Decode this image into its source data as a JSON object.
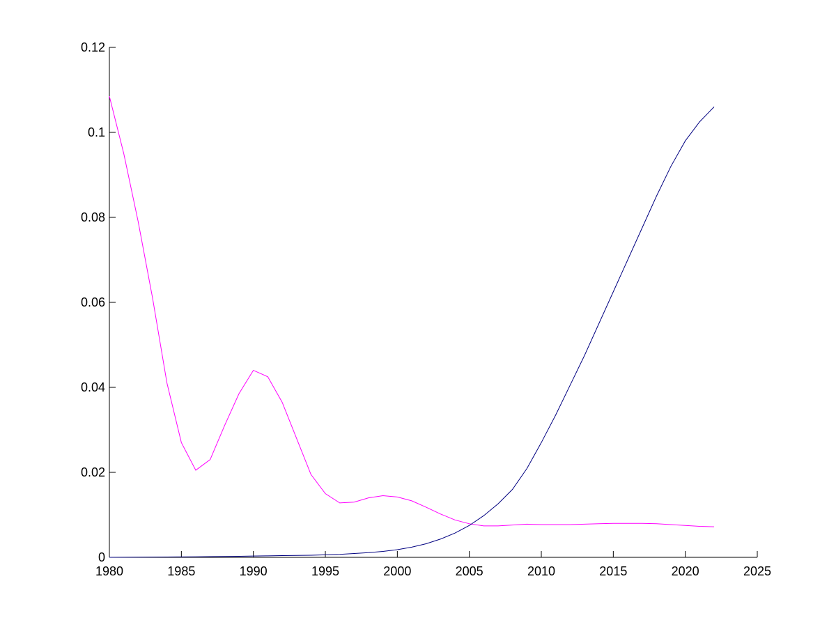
{
  "chart_data": {
    "type": "line",
    "x": [
      1980,
      1981,
      1982,
      1983,
      1984,
      1985,
      1986,
      1987,
      1988,
      1989,
      1990,
      1991,
      1992,
      1993,
      1994,
      1995,
      1996,
      1997,
      1998,
      1999,
      2000,
      2001,
      2002,
      2003,
      2004,
      2005,
      2006,
      2007,
      2008,
      2009,
      2010,
      2011,
      2012,
      2013,
      2014,
      2015,
      2016,
      2017,
      2018,
      2019,
      2020,
      2021,
      2022
    ],
    "series": [
      {
        "color": "#ff00ff",
        "values": [
          0.1085,
          0.095,
          0.079,
          0.061,
          0.041,
          0.027,
          0.0205,
          0.023,
          0.031,
          0.0385,
          0.044,
          0.0425,
          0.0365,
          0.028,
          0.0195,
          0.015,
          0.0128,
          0.013,
          0.014,
          0.0145,
          0.0142,
          0.0133,
          0.0118,
          0.0102,
          0.0088,
          0.0079,
          0.0074,
          0.0074,
          0.0076,
          0.0078,
          0.0077,
          0.0077,
          0.0077,
          0.0078,
          0.0079,
          0.008,
          0.008,
          0.008,
          0.0079,
          0.0077,
          0.0075,
          0.0073,
          0.0072
        ]
      },
      {
        "color": "#000080",
        "values": [
          0,
          2e-05,
          4e-05,
          6e-05,
          8e-05,
          0.0001,
          0.00013,
          0.00016,
          0.0002,
          0.00024,
          0.0003,
          0.00035,
          0.0004,
          0.00045,
          0.0005,
          0.0006,
          0.0007,
          0.0009,
          0.0011,
          0.0014,
          0.0018,
          0.0024,
          0.0032,
          0.0043,
          0.0057,
          0.0075,
          0.0098,
          0.0126,
          0.016,
          0.0209,
          0.027,
          0.0335,
          0.0405,
          0.0475,
          0.055,
          0.0625,
          0.07,
          0.0775,
          0.085,
          0.092,
          0.098,
          0.1025,
          0.106
        ]
      }
    ],
    "xlim": [
      1980,
      2025
    ],
    "xticks": [
      1980,
      1985,
      1990,
      1995,
      2000,
      2005,
      2010,
      2015,
      2020,
      2025
    ],
    "ylim": [
      0,
      0.12
    ],
    "yticks": [
      0,
      0.02,
      0.04,
      0.06,
      0.08,
      0.1,
      0.12
    ]
  }
}
